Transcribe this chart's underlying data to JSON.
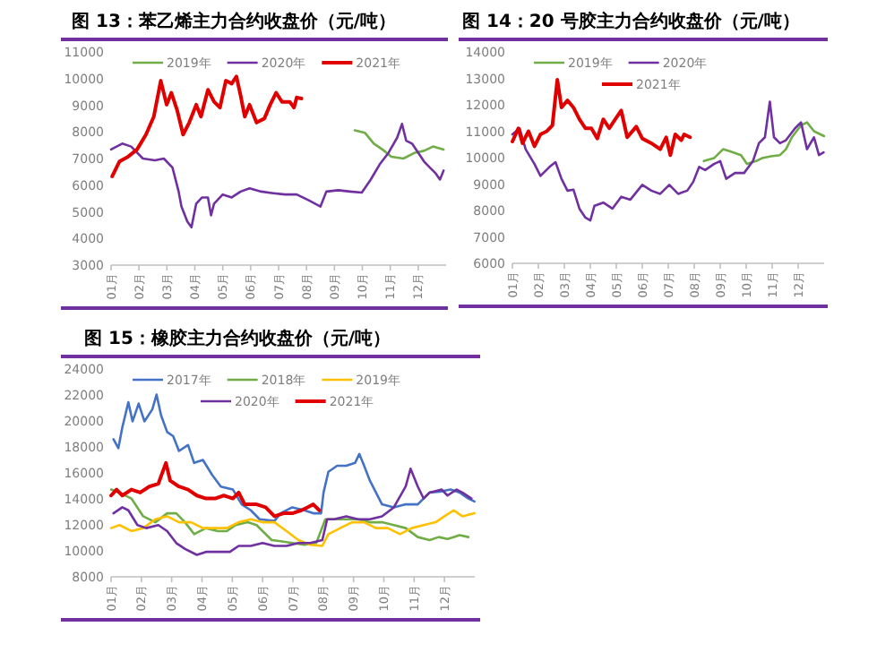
{
  "chart_data": [
    {
      "type": "line",
      "title": "图 13：苯乙烯主力合约收盘价（元/吨）",
      "legend": "top",
      "grid": false,
      "xlim": [
        1,
        13
      ],
      "ylim": [
        3000,
        11000
      ],
      "yticks": [
        3000,
        4000,
        5000,
        6000,
        7000,
        8000,
        9000,
        10000,
        11000
      ],
      "xticks": [
        {
          "value": 1,
          "label": "01月"
        },
        {
          "value": 2,
          "label": "02月"
        },
        {
          "value": 3,
          "label": "03月"
        },
        {
          "value": 4,
          "label": "04月"
        },
        {
          "value": 5,
          "label": "05月"
        },
        {
          "value": 6,
          "label": "06月"
        },
        {
          "value": 7,
          "label": "07月"
        },
        {
          "value": 8,
          "label": "08月"
        },
        {
          "value": 9,
          "label": "09月"
        },
        {
          "value": 10,
          "label": "10月"
        },
        {
          "value": 11,
          "label": "11月"
        },
        {
          "value": 12,
          "label": "12月"
        }
      ],
      "series": [
        {
          "name": "2019年",
          "color": "#70ad47",
          "x": [
            9.73,
            10.09,
            10.41,
            10.72,
            11.04,
            11.47,
            11.89,
            12.21,
            12.53,
            12.91
          ],
          "values": [
            8060,
            7970,
            7560,
            7340,
            7070,
            7000,
            7220,
            7290,
            7450,
            7340
          ]
        },
        {
          "name": "2020年",
          "color": "#7030a0",
          "x": [
            1.0,
            1.4,
            1.72,
            2.14,
            2.57,
            2.89,
            3.2,
            3.42,
            3.52,
            3.73,
            3.88,
            4.05,
            4.26,
            4.47,
            4.58,
            4.69,
            5.0,
            5.32,
            5.64,
            5.96,
            6.38,
            6.81,
            7.23,
            7.65,
            8.08,
            8.5,
            8.71,
            9.14,
            9.56,
            9.98,
            10.3,
            10.62,
            10.94,
            11.25,
            11.42,
            11.57,
            11.78,
            12.0,
            12.21,
            12.42,
            12.63,
            12.78,
            12.91
          ],
          "values": [
            7340,
            7560,
            7450,
            7000,
            6930,
            7000,
            6660,
            5760,
            5200,
            4640,
            4420,
            5310,
            5540,
            5540,
            4870,
            5310,
            5650,
            5540,
            5760,
            5880,
            5760,
            5700,
            5650,
            5650,
            5430,
            5200,
            5760,
            5810,
            5760,
            5720,
            6210,
            6780,
            7220,
            7790,
            8300,
            7670,
            7560,
            7220,
            6890,
            6660,
            6440,
            6210,
            6550
          ]
        },
        {
          "name": "2021年",
          "color": "#e00000",
          "x": [
            1.04,
            1.3,
            1.61,
            1.93,
            2.25,
            2.53,
            2.78,
            2.99,
            3.16,
            3.37,
            3.58,
            3.8,
            4.05,
            4.22,
            4.47,
            4.69,
            4.9,
            5.11,
            5.32,
            5.49,
            5.64,
            5.79,
            5.96,
            6.21,
            6.49,
            6.7,
            6.91,
            7.12,
            7.4,
            7.55,
            7.65,
            7.82
          ],
          "values": [
            6330,
            6890,
            7070,
            7340,
            7900,
            8570,
            9920,
            9020,
            9470,
            8800,
            7900,
            8350,
            9020,
            8570,
            9580,
            9130,
            8910,
            9920,
            9810,
            10080,
            9360,
            8570,
            9020,
            8350,
            8500,
            9020,
            9470,
            9130,
            9130,
            8910,
            9290,
            9250
          ]
        }
      ]
    },
    {
      "type": "line",
      "title": "图 14：20 号胶主力合约收盘价（元/吨）",
      "legend": "top",
      "grid": false,
      "xlim": [
        1,
        13
      ],
      "ylim": [
        6000,
        14000
      ],
      "yticks": [
        6000,
        7000,
        8000,
        9000,
        10000,
        11000,
        12000,
        13000,
        14000
      ],
      "xticks": [
        {
          "value": 1,
          "label": "01月"
        },
        {
          "value": 2,
          "label": "02月"
        },
        {
          "value": 3,
          "label": "03月"
        },
        {
          "value": 4,
          "label": "04月"
        },
        {
          "value": 5,
          "label": "05月"
        },
        {
          "value": 6,
          "label": "06月"
        },
        {
          "value": 7,
          "label": "07月"
        },
        {
          "value": 8,
          "label": "08月"
        },
        {
          "value": 9,
          "label": "09月"
        },
        {
          "value": 10,
          "label": "10月"
        },
        {
          "value": 11,
          "label": "11月"
        },
        {
          "value": 12,
          "label": "12月"
        }
      ],
      "series": [
        {
          "name": "2019年",
          "color": "#70ad47",
          "x": [
            8.37,
            8.76,
            9.11,
            9.46,
            9.8,
            10.03,
            10.38,
            10.61,
            10.95,
            11.3,
            11.53,
            11.76,
            12.11,
            12.34,
            12.61,
            13.0
          ],
          "values": [
            9870,
            9980,
            10320,
            10210,
            10095,
            9760,
            9870,
            9980,
            10050,
            10095,
            10320,
            10770,
            11220,
            11335,
            11000,
            10815
          ]
        },
        {
          "name": "2020年",
          "color": "#7030a0",
          "x": [
            1.0,
            1.28,
            1.51,
            1.85,
            2.08,
            2.43,
            2.66,
            2.89,
            3.12,
            3.35,
            3.58,
            3.81,
            4.0,
            4.16,
            4.5,
            4.85,
            5.19,
            5.54,
            6.0,
            6.35,
            6.69,
            7.04,
            7.38,
            7.73,
            7.96,
            8.19,
            8.42,
            8.76,
            9.0,
            9.23,
            9.57,
            9.92,
            10.26,
            10.49,
            10.72,
            10.91,
            11.07,
            11.3,
            11.53,
            11.88,
            12.11,
            12.34,
            12.61,
            12.8,
            12.98
          ],
          "values": [
            10880,
            11110,
            10320,
            9760,
            9310,
            9650,
            9830,
            9200,
            8750,
            8790,
            8070,
            7730,
            7620,
            8180,
            8300,
            8070,
            8520,
            8410,
            8970,
            8750,
            8630,
            8970,
            8630,
            8750,
            9080,
            9650,
            9530,
            9760,
            9870,
            9200,
            9420,
            9420,
            9870,
            10545,
            10770,
            12120,
            10770,
            10545,
            10660,
            11110,
            11335,
            10320,
            10770,
            10095,
            10200
          ]
        },
        {
          "name": "2021年",
          "color": "#e00000",
          "x": [
            1.0,
            1.23,
            1.39,
            1.62,
            1.85,
            2.08,
            2.31,
            2.54,
            2.73,
            2.89,
            3.12,
            3.35,
            3.58,
            3.81,
            4.04,
            4.27,
            4.5,
            4.73,
            4.96,
            5.19,
            5.42,
            5.77,
            6.0,
            6.35,
            6.69,
            6.92,
            7.08,
            7.27,
            7.5,
            7.61,
            7.84
          ],
          "values": [
            10610,
            11110,
            10545,
            11000,
            10430,
            10880,
            10990,
            11220,
            12950,
            11900,
            12165,
            11900,
            11450,
            11110,
            11110,
            10725,
            11450,
            11110,
            11450,
            11780,
            10770,
            11175,
            10725,
            10545,
            10320,
            10770,
            10095,
            10880,
            10660,
            10880,
            10770
          ]
        }
      ]
    },
    {
      "type": "line",
      "title": "图 15：橡胶主力合约收盘价（元/吨）",
      "legend": "top",
      "grid": false,
      "xlim": [
        1,
        13
      ],
      "ylim": [
        8000,
        24000
      ],
      "yticks": [
        8000,
        10000,
        12000,
        14000,
        16000,
        18000,
        20000,
        22000,
        24000
      ],
      "xticks": [
        {
          "value": 1,
          "label": "01月"
        },
        {
          "value": 2,
          "label": "02月"
        },
        {
          "value": 3,
          "label": "03月"
        },
        {
          "value": 4,
          "label": "04月"
        },
        {
          "value": 5,
          "label": "05月"
        },
        {
          "value": 6,
          "label": "06月"
        },
        {
          "value": 7,
          "label": "07月"
        },
        {
          "value": 8,
          "label": "08月"
        },
        {
          "value": 9,
          "label": "09月"
        },
        {
          "value": 10,
          "label": "10月"
        },
        {
          "value": 11,
          "label": "11月"
        },
        {
          "value": 12,
          "label": "12月"
        }
      ],
      "series": [
        {
          "name": "2017年",
          "color": "#4472c4",
          "x": [
            1.08,
            1.24,
            1.37,
            1.57,
            1.71,
            1.91,
            2.1,
            2.36,
            2.5,
            2.65,
            2.85,
            3.05,
            3.24,
            3.54,
            3.74,
            4.03,
            4.33,
            4.62,
            5.02,
            5.31,
            5.61,
            5.9,
            6.39,
            6.59,
            6.98,
            7.38,
            7.67,
            7.93,
            8.01,
            8.17,
            8.46,
            8.76,
            9.05,
            9.19,
            9.35,
            9.54,
            9.74,
            9.94,
            10.33,
            10.72,
            11.12,
            11.51,
            11.91,
            12.2,
            12.5,
            12.79,
            12.99
          ],
          "values": [
            18600,
            17900,
            19500,
            21440,
            19970,
            21340,
            19970,
            20890,
            22030,
            20430,
            19150,
            18830,
            17690,
            18150,
            16770,
            17000,
            15860,
            14950,
            14720,
            13580,
            13120,
            12430,
            12300,
            12890,
            13350,
            13120,
            12890,
            12890,
            14490,
            16090,
            16550,
            16550,
            16770,
            17460,
            16550,
            15400,
            14490,
            13580,
            13350,
            13580,
            13580,
            14490,
            14580,
            14720,
            14490,
            14030,
            13800
          ]
        },
        {
          "name": "2018年",
          "color": "#70ad47",
          "x": [
            1.0,
            1.28,
            1.67,
            2.06,
            2.46,
            2.85,
            3.15,
            3.44,
            3.74,
            4.13,
            4.52,
            4.82,
            5.11,
            5.51,
            5.8,
            6.0,
            6.3,
            6.59,
            6.98,
            7.38,
            7.77,
            8.07,
            8.36,
            8.76,
            9.15,
            9.54,
            9.94,
            10.33,
            10.72,
            11.12,
            11.51,
            11.81,
            12.1,
            12.5,
            12.79
          ],
          "values": [
            14720,
            14490,
            14030,
            12660,
            12200,
            12890,
            12890,
            12200,
            11290,
            11750,
            11520,
            11520,
            11980,
            12200,
            11980,
            11520,
            10830,
            10740,
            10600,
            10470,
            10600,
            12430,
            12430,
            12430,
            12430,
            12200,
            12200,
            11980,
            11750,
            11060,
            10830,
            11060,
            10920,
            11200,
            11060
          ]
        },
        {
          "name": "2019年",
          "color": "#ffc000",
          "x": [
            1.0,
            1.28,
            1.67,
            2.06,
            2.46,
            2.85,
            3.24,
            3.64,
            4.03,
            4.43,
            4.82,
            5.21,
            5.61,
            6.0,
            6.39,
            6.79,
            7.18,
            7.57,
            7.97,
            8.17,
            8.56,
            8.95,
            9.35,
            9.74,
            10.13,
            10.53,
            10.92,
            11.31,
            11.71,
            12.0,
            12.3,
            12.59,
            12.99
          ],
          "values": [
            11750,
            11980,
            11520,
            11750,
            12430,
            12660,
            12200,
            12200,
            11750,
            11750,
            11750,
            12200,
            12430,
            12200,
            12200,
            11520,
            10830,
            10470,
            10380,
            11290,
            11750,
            12200,
            12200,
            11750,
            11750,
            11290,
            11750,
            11980,
            12200,
            12660,
            13120,
            12660,
            12890
          ]
        },
        {
          "name": "2020年",
          "color": "#7030a0",
          "x": [
            1.08,
            1.37,
            1.57,
            1.87,
            2.16,
            2.56,
            2.85,
            3.15,
            3.44,
            3.83,
            4.13,
            4.52,
            4.92,
            5.21,
            5.61,
            6.0,
            6.39,
            6.79,
            7.18,
            7.57,
            7.97,
            8.13,
            8.36,
            8.76,
            9.15,
            9.54,
            9.94,
            10.33,
            10.72,
            10.88,
            11.12,
            11.31,
            11.51,
            11.91,
            12.1,
            12.4,
            12.59,
            12.89
          ],
          "values": [
            12890,
            13350,
            13120,
            11980,
            11750,
            11980,
            11520,
            10600,
            10150,
            9690,
            9920,
            9920,
            9920,
            10380,
            10380,
            10600,
            10380,
            10380,
            10600,
            10600,
            10830,
            12430,
            12430,
            12660,
            12430,
            12430,
            12660,
            13350,
            14950,
            16320,
            14950,
            14030,
            14490,
            14720,
            14260,
            14720,
            14490,
            14030
          ]
        },
        {
          "name": "2021年",
          "color": "#e00000",
          "x": [
            1.0,
            1.18,
            1.37,
            1.67,
            1.96,
            2.26,
            2.56,
            2.81,
            2.95,
            3.24,
            3.54,
            3.83,
            4.13,
            4.43,
            4.72,
            5.02,
            5.21,
            5.41,
            5.8,
            6.1,
            6.39,
            6.69,
            6.98,
            7.28,
            7.48,
            7.67,
            7.87
          ],
          "values": [
            14260,
            14720,
            14260,
            14720,
            14490,
            14950,
            15170,
            16770,
            15400,
            14950,
            14720,
            14260,
            14030,
            14030,
            14260,
            14030,
            14490,
            13580,
            13580,
            13350,
            12660,
            12890,
            12890,
            13120,
            13350,
            13580,
            13120
          ]
        }
      ]
    }
  ]
}
